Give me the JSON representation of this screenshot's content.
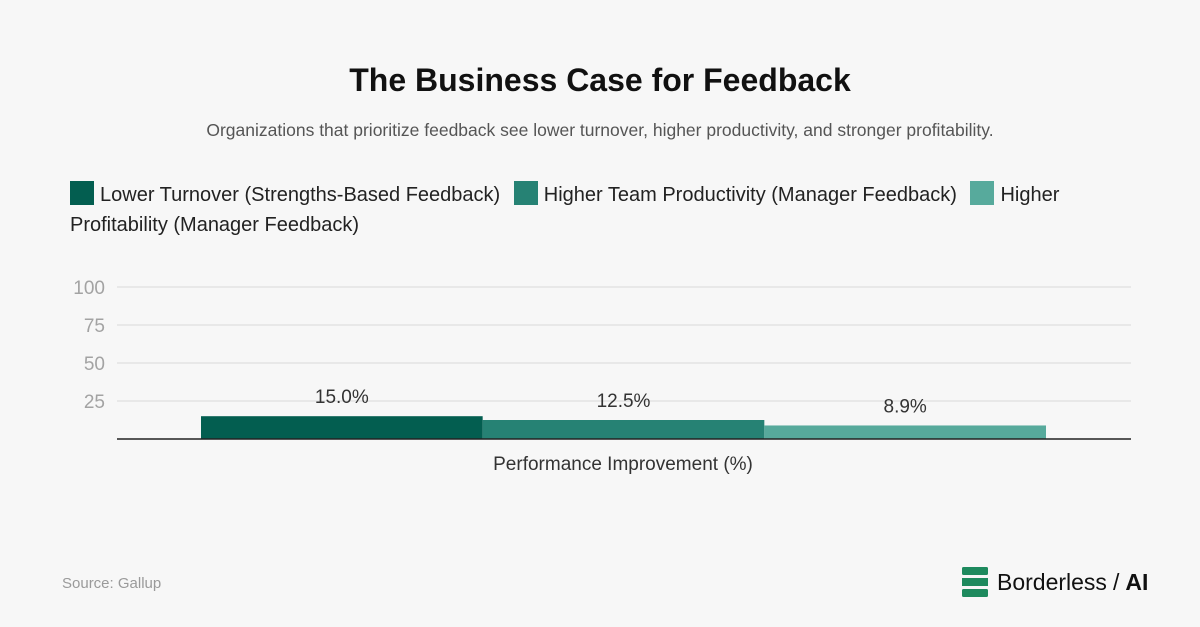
{
  "title": "The Business Case for Feedback",
  "subtitle": "Organizations that prioritize feedback see lower turnover, higher productivity, and stronger profitability.",
  "source": "Source: Gallup",
  "brand": {
    "name": "Borderless",
    "separator": "/",
    "suffix": "AI",
    "accent_color": "#1e8a5e"
  },
  "chart_data": {
    "type": "bar",
    "categories": [
      "Performance Improvement (%)"
    ],
    "xlabel": "Performance Improvement (%)",
    "ylabel": "",
    "ylim": [
      0,
      100
    ],
    "yticks": [
      25,
      50,
      75,
      100
    ],
    "grid": true,
    "legend_position": "top-left",
    "series": [
      {
        "name": "Lower Turnover (Strengths-Based Feedback)",
        "values": [
          15.0
        ],
        "label": "15.0%",
        "color": "#035e50"
      },
      {
        "name": "Higher Team Productivity (Manager Feedback)",
        "values": [
          12.5
        ],
        "label": "12.5%",
        "color": "#268274"
      },
      {
        "name": "Higher Profitability (Manager Feedback)",
        "values": [
          8.9
        ],
        "label": "8.9%",
        "color": "#57aa9c"
      }
    ]
  }
}
